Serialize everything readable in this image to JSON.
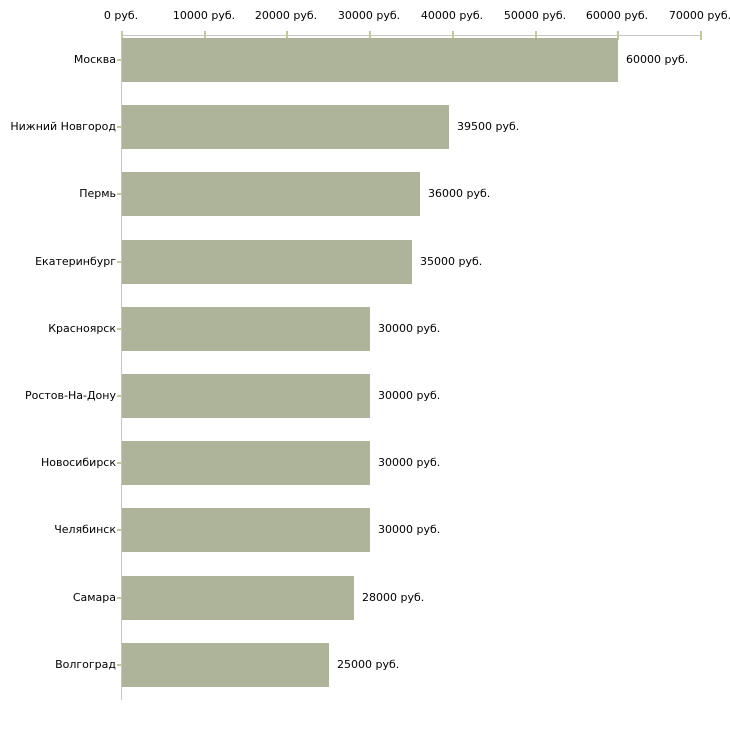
{
  "chart_data": {
    "type": "bar",
    "orientation": "horizontal",
    "title": "",
    "xlabel": "",
    "ylabel": "",
    "unit": "руб.",
    "categories": [
      "Москва",
      "Нижний Новгород",
      "Пермь",
      "Екатеринбург",
      "Красноярск",
      "Ростов-На-Дону",
      "Новосибирск",
      "Челябинск",
      "Самара",
      "Волгоград"
    ],
    "values": [
      60000,
      39500,
      36000,
      35000,
      30000,
      30000,
      30000,
      30000,
      28000,
      25000
    ],
    "value_labels": [
      "60000 руб.",
      "39500 руб.",
      "36000 руб.",
      "35000 руб.",
      "30000 руб.",
      "30000 руб.",
      "30000 руб.",
      "30000 руб.",
      "28000 руб.",
      "25000 руб."
    ],
    "x_axis": {
      "position": "top",
      "range": [
        0,
        70000
      ],
      "ticks": [
        0,
        10000,
        20000,
        30000,
        40000,
        50000,
        60000,
        70000
      ],
      "tick_labels": [
        "0 руб.",
        "10000 руб.",
        "20000 руб.",
        "30000 руб.",
        "40000 руб.",
        "50000 руб.",
        "60000 руб.",
        "70000 руб."
      ]
    },
    "grid": false,
    "legend": false,
    "colors": {
      "bar": "#adb49a",
      "axis_line": "#c6c6c6",
      "tick_mark": "#c6c89a",
      "text": "#000000",
      "background": "#ffffff"
    }
  }
}
